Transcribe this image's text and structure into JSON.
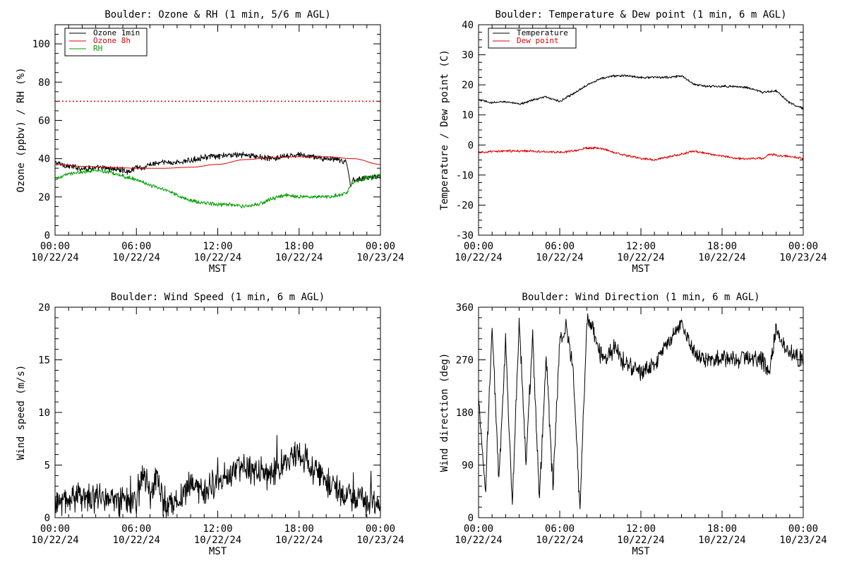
{
  "chart_data": [
    {
      "type": "line",
      "title": "Boulder: Ozone & RH (1 min, 5/6 m AGL)",
      "xlabel": "MST",
      "ylabel": "Ozone (ppbv) / RH (%)",
      "xlim": [
        "10/22/24 00:00",
        "10/23/24 00:00"
      ],
      "ylim": [
        0,
        110
      ],
      "yticks": [
        0,
        20,
        40,
        60,
        80,
        100
      ],
      "xticks": [
        {
          "time": "00:00",
          "date": "10/22/24"
        },
        {
          "time": "06:00",
          "date": "10/22/24"
        },
        {
          "time": "12:00",
          "date": "10/22/24"
        },
        {
          "time": "18:00",
          "date": "10/22/24"
        },
        {
          "time": "00:00",
          "date": "10/23/24"
        }
      ],
      "legend": {
        "position": "top-left"
      },
      "reference_line": {
        "y": 70,
        "color": "#e00000",
        "style": "dotted"
      },
      "series": [
        {
          "name": "Ozone 1min",
          "color": "#000000",
          "noise": 1.2,
          "smooth": false,
          "x": [
            0,
            1,
            2,
            3,
            4,
            5,
            5.5,
            6,
            6.5,
            7,
            8,
            9,
            10,
            11,
            12,
            13,
            14,
            15,
            16,
            17,
            18,
            19,
            20,
            21,
            21.5,
            21.8,
            22,
            23,
            24
          ],
          "y": [
            38,
            36,
            35,
            35,
            35,
            34,
            33,
            36,
            35,
            37,
            38,
            38,
            39,
            41,
            41,
            42,
            42,
            41,
            40,
            41,
            42,
            41,
            40,
            39,
            38,
            26,
            29,
            30,
            31
          ]
        },
        {
          "name": "Ozone 8h",
          "color": "#e00000",
          "noise": 0,
          "smooth": true,
          "x": [
            0,
            2,
            4,
            6,
            8,
            10,
            12,
            14,
            16,
            18,
            20,
            22,
            24
          ],
          "y": [
            37,
            36,
            35.5,
            35,
            35,
            35.5,
            37,
            39.5,
            40.5,
            41,
            41,
            40,
            37
          ]
        },
        {
          "name": "RH",
          "color": "#00a000",
          "noise": 0.8,
          "smooth": false,
          "x": [
            0,
            1,
            2,
            3,
            4,
            5,
            6,
            7,
            8,
            9,
            10,
            11,
            12,
            13,
            14,
            15,
            16,
            17,
            18,
            19,
            20,
            21,
            21.5,
            22,
            23,
            24
          ],
          "y": [
            29,
            32,
            33,
            34,
            33,
            31,
            29,
            26,
            24,
            21,
            18,
            17,
            16,
            16,
            15,
            16,
            19,
            21,
            20,
            20,
            20,
            21,
            22,
            28,
            30,
            31
          ]
        }
      ]
    },
    {
      "type": "line",
      "title": "Boulder: Temperature & Dew point (1 min, 6 m AGL)",
      "xlabel": "MST",
      "ylabel": "Temperature / Dew point (C)",
      "xlim": [
        "10/22/24 00:00",
        "10/23/24 00:00"
      ],
      "ylim": [
        -30,
        40
      ],
      "yticks": [
        -30,
        -20,
        -10,
        0,
        10,
        20,
        30,
        40
      ],
      "xticks": [
        {
          "time": "00:00",
          "date": "10/22/24"
        },
        {
          "time": "06:00",
          "date": "10/22/24"
        },
        {
          "time": "12:00",
          "date": "10/22/24"
        },
        {
          "time": "18:00",
          "date": "10/22/24"
        },
        {
          "time": "00:00",
          "date": "10/23/24"
        }
      ],
      "legend": {
        "position": "top-left"
      },
      "series": [
        {
          "name": "Temperature",
          "color": "#000000",
          "noise": 0.3,
          "smooth": false,
          "x": [
            0,
            1,
            2,
            3,
            4,
            5,
            6,
            7,
            8,
            9,
            10,
            11,
            12,
            13,
            14,
            15,
            16,
            17,
            18,
            19,
            20,
            21,
            22,
            23,
            24
          ],
          "y": [
            15,
            14,
            14.5,
            13.5,
            15,
            16,
            14.5,
            17,
            20,
            22,
            23,
            23,
            22.5,
            22.5,
            22.5,
            23,
            20,
            19.5,
            19.5,
            19.5,
            19,
            17.5,
            18,
            14,
            12
          ]
        },
        {
          "name": "Dew point",
          "color": "#e00000",
          "noise": 0.3,
          "smooth": false,
          "x": [
            0,
            2,
            4,
            6,
            7,
            8,
            9,
            10,
            11,
            12,
            13,
            14,
            15,
            16,
            17,
            18,
            19,
            20,
            21,
            21.5,
            22,
            23,
            24
          ],
          "y": [
            -2.5,
            -2,
            -2,
            -2.5,
            -2,
            -1,
            -1,
            -2.5,
            -3.5,
            -4.5,
            -5,
            -4,
            -3,
            -2,
            -3,
            -3.5,
            -4.5,
            -4.5,
            -4.5,
            -3,
            -3.5,
            -3.8,
            -4.5
          ]
        }
      ]
    },
    {
      "type": "line",
      "title": "Boulder: Wind Speed (1 min, 6 m AGL)",
      "xlabel": "MST",
      "ylabel": "Wind speed (m/s)",
      "xlim": [
        "10/22/24 00:00",
        "10/23/24 00:00"
      ],
      "ylim": [
        0,
        20
      ],
      "yticks": [
        0,
        5,
        10,
        15,
        20
      ],
      "xticks": [
        {
          "time": "00:00",
          "date": "10/22/24"
        },
        {
          "time": "06:00",
          "date": "10/22/24"
        },
        {
          "time": "12:00",
          "date": "10/22/24"
        },
        {
          "time": "18:00",
          "date": "10/22/24"
        },
        {
          "time": "00:00",
          "date": "10/23/24"
        }
      ],
      "series": [
        {
          "color": "#000000",
          "noise": 1.1,
          "smooth": false,
          "min": 0,
          "x": [
            0,
            1,
            2,
            3,
            4,
            5,
            6,
            6.5,
            7,
            7.5,
            8,
            9,
            10,
            11,
            12,
            13,
            14,
            15,
            16,
            17,
            18,
            18.5,
            19,
            20,
            21,
            22,
            23,
            24
          ],
          "y": [
            1.5,
            1.5,
            2,
            2,
            1.5,
            1.5,
            1.5,
            4,
            2,
            4,
            1,
            1.5,
            3,
            2.5,
            3.5,
            4,
            5,
            4,
            4,
            5.5,
            6,
            5.5,
            4.5,
            3.5,
            2.5,
            1.8,
            1.5,
            1.5
          ]
        }
      ]
    },
    {
      "type": "line",
      "title": "Boulder: Wind Direction (1 min, 6 m AGL)",
      "xlabel": "MST",
      "ylabel": "Wind direction (deg)",
      "xlim": [
        "10/22/24 00:00",
        "10/23/24 00:00"
      ],
      "ylim": [
        0,
        360
      ],
      "yticks": [
        0,
        90,
        180,
        270,
        360
      ],
      "xticks": [
        {
          "time": "00:00",
          "date": "10/22/24"
        },
        {
          "time": "06:00",
          "date": "10/22/24"
        },
        {
          "time": "12:00",
          "date": "10/22/24"
        },
        {
          "time": "18:00",
          "date": "10/22/24"
        },
        {
          "time": "00:00",
          "date": "10/23/24"
        }
      ],
      "series": [
        {
          "color": "#000000",
          "noise": 12,
          "smooth": false,
          "min": 0,
          "max": 360,
          "x": [
            0,
            0.5,
            1,
            1.5,
            2,
            2.5,
            3,
            3.5,
            4,
            4.5,
            5,
            5.5,
            6,
            6.5,
            7,
            7.5,
            8,
            8.5,
            9,
            9.5,
            10,
            11,
            12,
            13,
            14,
            15,
            16,
            17,
            18,
            19,
            20,
            21,
            21.5,
            22,
            22.5,
            23,
            24
          ],
          "y": [
            200,
            40,
            330,
            60,
            300,
            20,
            340,
            100,
            310,
            30,
            280,
            50,
            300,
            330,
            250,
            10,
            340,
            320,
            280,
            270,
            290,
            260,
            250,
            260,
            300,
            330,
            280,
            270,
            270,
            270,
            275,
            270,
            250,
            320,
            300,
            280,
            270
          ]
        }
      ]
    }
  ]
}
